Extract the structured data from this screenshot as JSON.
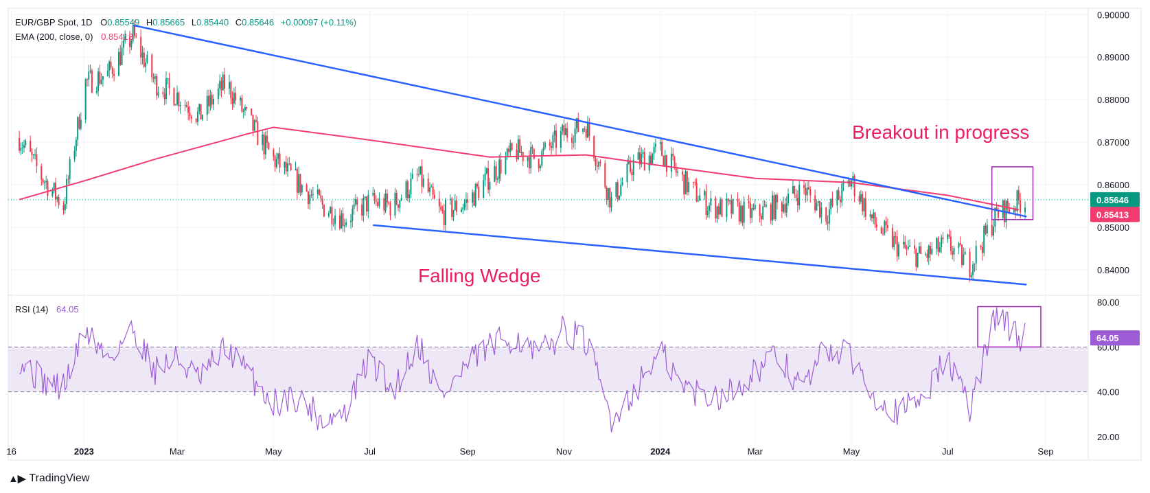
{
  "header": {
    "symbol": "EUR/GBP Spot, 1D",
    "o_label": "O",
    "o": "0.85549",
    "h_label": "H",
    "h": "0.85665",
    "l_label": "L",
    "l": "0.85440",
    "c_label": "C",
    "c": "0.85646",
    "change": "+0.00097 (+0.11%)",
    "ema_label": "EMA (200, close, 0)",
    "ema_value": "0.85413",
    "rsi_label": "RSI (14)",
    "rsi_value": "64.05"
  },
  "annotations": {
    "breakout": "Breakout in progress",
    "wedge": "Falling Wedge"
  },
  "price_badges": {
    "last": "0.85646",
    "ema": "0.85413",
    "rsi": "64.05"
  },
  "footer": {
    "brand": "TradingView"
  },
  "colors": {
    "up": "#089981",
    "down": "#f23645",
    "trendline": "#2962ff",
    "ema": "#f23b6f",
    "rsi": "#9c5cd6",
    "rsi_band": "#ede7f6",
    "box": "#9c27b0",
    "annotation": "#e91e63",
    "last_badge": "#089981",
    "ema_badge": "#f23b6f"
  },
  "chart_data": [
    {
      "type": "candlestick",
      "title": "EUR/GBP Spot, 1D",
      "x_ticks": [
        "16",
        "2023",
        "Mar",
        "May",
        "Jul",
        "Sep",
        "Nov",
        "2024",
        "Mar",
        "May",
        "Jul",
        "Sep"
      ],
      "y_ticks": [
        "0.90000",
        "0.89000",
        "0.88000",
        "0.87000",
        "0.86000",
        "0.85000",
        "0.84000"
      ],
      "ylim": [
        0.834,
        0.9015
      ],
      "series": [
        {
          "name": "EUR/GBP",
          "x": [
            "Nov 21, 2022",
            "Dec 5, 2022",
            "Dec 19, 2022",
            "Jan 2, 2023",
            "Jan 16, 2023",
            "Feb 1, 2023",
            "Feb 15, 2023",
            "Mar 1, 2023",
            "Mar 15, 2023",
            "Apr 1, 2023",
            "Apr 15, 2023",
            "May 1, 2023",
            "May 15, 2023",
            "Jun 1, 2023",
            "Jun 15, 2023",
            "Jul 1, 2023",
            "Jul 15, 2023",
            "Aug 1, 2023",
            "Aug 15, 2023",
            "Sep 1, 2023",
            "Sep 15, 2023",
            "Oct 1, 2023",
            "Oct 15, 2023",
            "Nov 1, 2023",
            "Nov 15, 2023",
            "Dec 1, 2023",
            "Dec 15, 2023",
            "Jan 1, 2024",
            "Jan 15, 2024",
            "Feb 1, 2024",
            "Feb 15, 2024",
            "Mar 1, 2024",
            "Mar 15, 2024",
            "Apr 1, 2024",
            "Apr 15, 2024",
            "May 1, 2024",
            "May 15, 2024",
            "Jun 1, 2024",
            "Jun 15, 2024",
            "Jul 1, 2024",
            "Jul 15, 2024",
            "Aug 1, 2024",
            "Aug 15, 2024"
          ],
          "values": [
            0.871,
            0.862,
            0.855,
            0.884,
            0.886,
            0.895,
            0.884,
            0.881,
            0.876,
            0.884,
            0.875,
            0.866,
            0.861,
            0.855,
            0.852,
            0.856,
            0.855,
            0.862,
            0.853,
            0.856,
            0.862,
            0.868,
            0.866,
            0.872,
            0.874,
            0.856,
            0.865,
            0.868,
            0.861,
            0.855,
            0.854,
            0.853,
            0.855,
            0.859,
            0.853,
            0.861,
            0.851,
            0.845,
            0.843,
            0.846,
            0.841,
            0.853,
            0.856
          ]
        },
        {
          "name": "EMA (200, close, 0)",
          "x": [
            "Nov 21, 2022",
            "Jan 2, 2023",
            "Feb 15, 2023",
            "Apr 15, 2023",
            "May 1, 2023",
            "Jul 1, 2023",
            "Sep 15, 2023",
            "Nov 15, 2023",
            "Jan 1, 2024",
            "Mar 1, 2024",
            "May 1, 2024",
            "Jul 1, 2024",
            "Aug 15, 2024"
          ],
          "values": [
            0.8565,
            0.861,
            0.866,
            0.872,
            0.8735,
            0.8705,
            0.8665,
            0.867,
            0.8645,
            0.8615,
            0.8605,
            0.8575,
            0.8541
          ]
        }
      ],
      "trendlines": [
        {
          "name": "upper",
          "x": [
            "Feb 1, 2023",
            "Aug 20, 2024"
          ],
          "values": [
            0.8975,
            0.8525
          ]
        },
        {
          "name": "lower",
          "x": [
            "Jul 3, 2023",
            "Aug 20, 2024"
          ],
          "values": [
            0.8505,
            0.8365
          ]
        }
      ],
      "last_price": 0.85646,
      "ema_last": 0.85413
    },
    {
      "type": "line",
      "title": "RSI (14)",
      "y_ticks": [
        "80.00",
        "60.00",
        "40.00",
        "20.00"
      ],
      "ylim": [
        20,
        80
      ],
      "band": [
        40,
        60
      ],
      "series": [
        {
          "name": "RSI (14)",
          "x": [
            "Nov 21, 2022",
            "Dec 5, 2022",
            "Dec 19, 2022",
            "Jan 2, 2023",
            "Jan 16, 2023",
            "Feb 1, 2023",
            "Feb 15, 2023",
            "Mar 1, 2023",
            "Mar 15, 2023",
            "Apr 1, 2023",
            "Apr 15, 2023",
            "May 1, 2023",
            "May 15, 2023",
            "Jun 1, 2023",
            "Jun 15, 2023",
            "Jul 1, 2023",
            "Jul 15, 2023",
            "Aug 1, 2023",
            "Aug 15, 2023",
            "Sep 1, 2023",
            "Sep 15, 2023",
            "Oct 1, 2023",
            "Oct 15, 2023",
            "Nov 1, 2023",
            "Nov 15, 2023",
            "Dec 1, 2023",
            "Dec 15, 2023",
            "Jan 1, 2024",
            "Jan 15, 2024",
            "Feb 1, 2024",
            "Feb 15, 2024",
            "Mar 1, 2024",
            "Mar 15, 2024",
            "Apr 1, 2024",
            "Apr 15, 2024",
            "May 1, 2024",
            "May 15, 2024",
            "Jun 1, 2024",
            "Jun 15, 2024",
            "Jul 1, 2024",
            "Jul 15, 2024",
            "Aug 1, 2024",
            "Aug 15, 2024"
          ],
          "values": [
            55,
            45,
            42,
            68,
            55,
            68,
            50,
            55,
            45,
            60,
            48,
            35,
            38,
            28,
            30,
            55,
            40,
            62,
            38,
            52,
            60,
            65,
            55,
            68,
            62,
            28,
            40,
            58,
            42,
            38,
            40,
            50,
            55,
            42,
            60,
            55,
            40,
            30,
            38,
            55,
            32,
            76,
            64
          ]
        }
      ],
      "last_value": 64.05
    }
  ]
}
